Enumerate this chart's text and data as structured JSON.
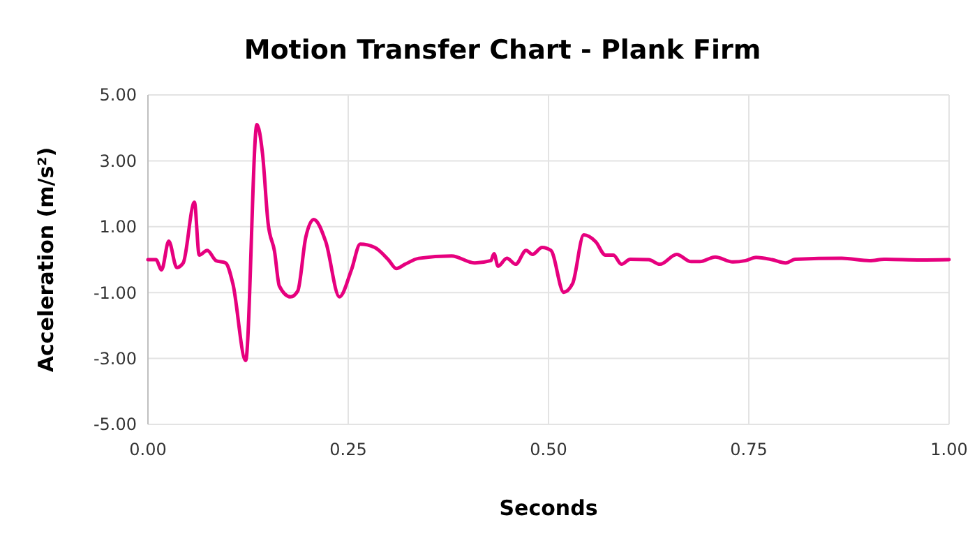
{
  "chart_data": {
    "type": "line",
    "title": "Motion Transfer Chart - Plank Firm",
    "xlabel": "Seconds",
    "ylabel": "Acceleration (m/s²)",
    "xlim": [
      0,
      1
    ],
    "ylim": [
      -5,
      5
    ],
    "xticks": [
      {
        "value": 0,
        "label": "0.00"
      },
      {
        "value": 0.25,
        "label": "0.25"
      },
      {
        "value": 0.5,
        "label": "0.50"
      },
      {
        "value": 0.75,
        "label": "0.75"
      },
      {
        "value": 1,
        "label": "1.00"
      }
    ],
    "yticks": [
      {
        "value": -5,
        "label": "-5.00"
      },
      {
        "value": -3,
        "label": "-3.00"
      },
      {
        "value": -1,
        "label": "-1.00"
      },
      {
        "value": 1,
        "label": "1.00"
      },
      {
        "value": 3,
        "label": "3.00"
      },
      {
        "value": 5,
        "label": "5.00"
      }
    ],
    "grid": true,
    "marker": "none",
    "line_style": "solid",
    "series": [
      {
        "color": "#e6007e",
        "x": [
          0,
          0.01,
          0.017,
          0.026,
          0.036,
          0.044,
          0.058,
          0.064,
          0.074,
          0.085,
          0.097,
          0.106,
          0.122,
          0.136,
          0.143,
          0.15,
          0.158,
          0.164,
          0.178,
          0.187,
          0.197,
          0.207,
          0.222,
          0.239,
          0.254,
          0.265,
          0.283,
          0.3,
          0.31,
          0.321,
          0.338,
          0.379,
          0.408,
          0.428,
          0.432,
          0.437,
          0.448,
          0.459,
          0.472,
          0.48,
          0.492,
          0.503,
          0.519,
          0.53,
          0.544,
          0.559,
          0.571,
          0.581,
          0.591,
          0.602,
          0.625,
          0.639,
          0.66,
          0.678,
          0.689,
          0.708,
          0.73,
          0.746,
          0.759,
          0.779,
          0.796,
          0.808,
          0.866,
          0.901,
          0.919,
          0.965,
          1
        ],
        "values": [
          0,
          0,
          -0.31,
          0.56,
          -0.24,
          -0.1,
          1.74,
          0.14,
          0.28,
          -0.03,
          -0.1,
          -0.73,
          -3.06,
          4.1,
          3.22,
          1.1,
          0.25,
          -0.8,
          -1.13,
          -0.95,
          0.68,
          1.22,
          0.54,
          -1.13,
          -0.31,
          0.47,
          0.37,
          0,
          -0.27,
          -0.14,
          0.04,
          0.11,
          -0.1,
          -0.03,
          0.18,
          -0.2,
          0.04,
          -0.14,
          0.28,
          0.16,
          0.37,
          0.28,
          -0.99,
          -0.73,
          0.75,
          0.54,
          0.14,
          0.14,
          -0.14,
          0.01,
          0,
          -0.14,
          0.16,
          -0.06,
          -0.06,
          0.08,
          -0.07,
          -0.03,
          0.07,
          0,
          -0.1,
          0.01,
          0.04,
          -0.03,
          0.01,
          -0.01,
          0
        ]
      }
    ]
  }
}
